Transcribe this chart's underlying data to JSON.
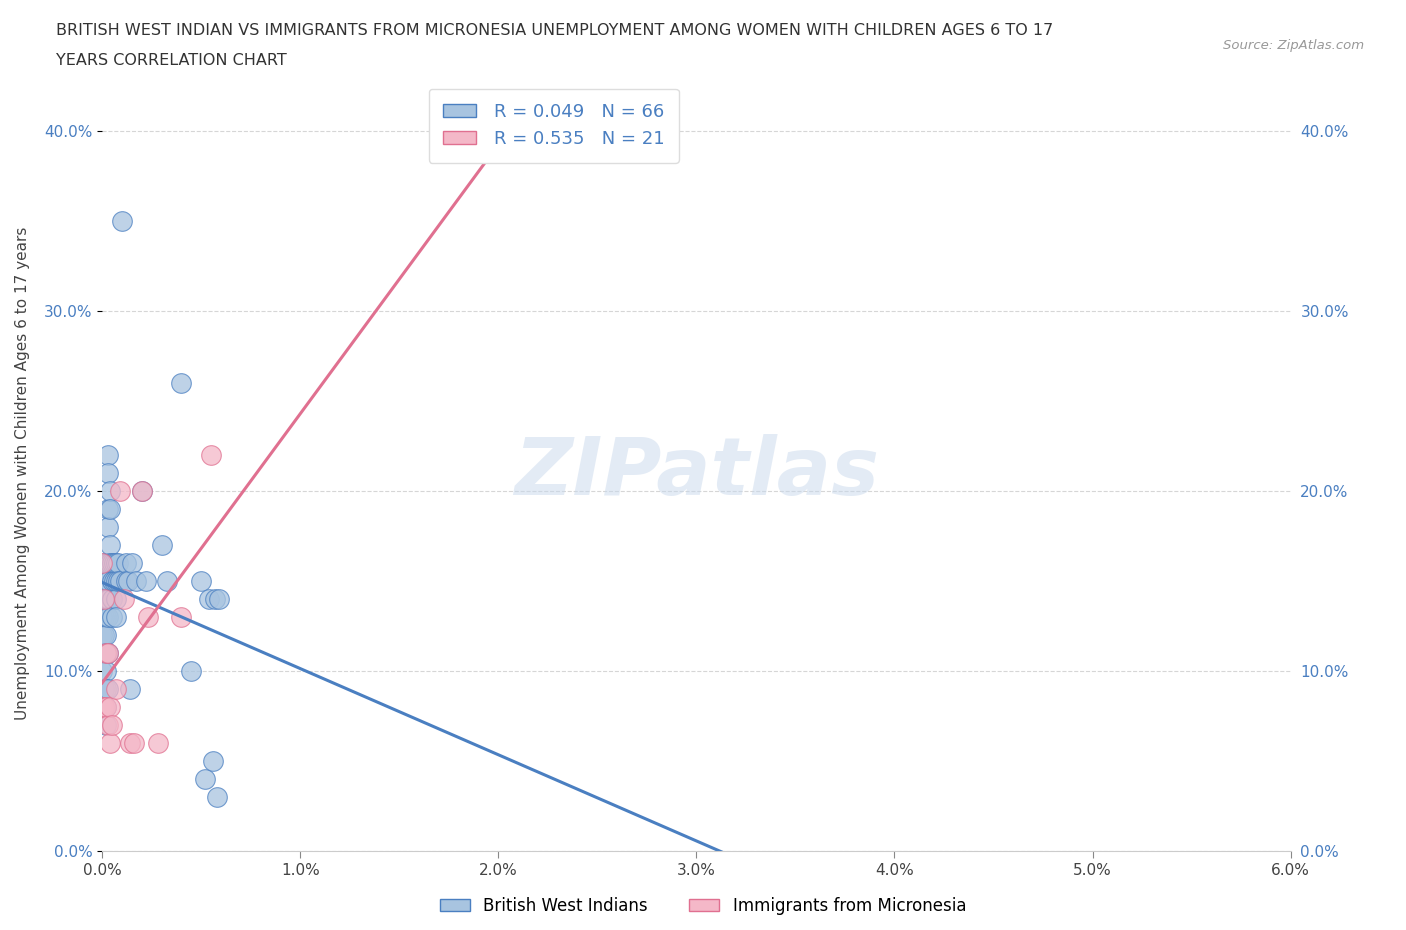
{
  "title_line1": "BRITISH WEST INDIAN VS IMMIGRANTS FROM MICRONESIA UNEMPLOYMENT AMONG WOMEN WITH CHILDREN AGES 6 TO 17",
  "title_line2": "YEARS CORRELATION CHART",
  "source_text": "Source: ZipAtlas.com",
  "ylabel": "Unemployment Among Women with Children Ages 6 to 17 years",
  "watermark": "ZIPatlas",
  "legend_label1": "British West Indians",
  "legend_label2": "Immigrants from Micronesia",
  "R1": 0.049,
  "N1": 66,
  "R2": 0.535,
  "N2": 21,
  "xlim": [
    0.0,
    0.06
  ],
  "ylim": [
    0.0,
    0.42
  ],
  "xticks": [
    0.0,
    0.01,
    0.02,
    0.03,
    0.04,
    0.05,
    0.06
  ],
  "yticks": [
    0.0,
    0.1,
    0.2,
    0.3,
    0.4
  ],
  "color1": "#a8c4e0",
  "color2": "#f4b8c8",
  "trendline1_color": "#4a7fc1",
  "trendline2_color": "#e07090",
  "blue_x": [
    0.0,
    0.0,
    0.0,
    0.0001,
    0.0001,
    0.0001,
    0.0001,
    0.0001,
    0.0001,
    0.0002,
    0.0002,
    0.0002,
    0.0002,
    0.0002,
    0.0002,
    0.0002,
    0.0002,
    0.0002,
    0.0002,
    0.0003,
    0.0003,
    0.0003,
    0.0003,
    0.0003,
    0.0003,
    0.0003,
    0.0003,
    0.0003,
    0.0003,
    0.0004,
    0.0004,
    0.0004,
    0.0004,
    0.0005,
    0.0005,
    0.0005,
    0.0005,
    0.0006,
    0.0006,
    0.0007,
    0.0007,
    0.0007,
    0.0007,
    0.0008,
    0.0008,
    0.0009,
    0.001,
    0.0012,
    0.0012,
    0.0013,
    0.0014,
    0.0015,
    0.0017,
    0.002,
    0.0022,
    0.003,
    0.0033,
    0.004,
    0.0045,
    0.005,
    0.0052,
    0.0054,
    0.0056,
    0.0057,
    0.0058,
    0.0059
  ],
  "blue_y": [
    0.13,
    0.12,
    0.1,
    0.16,
    0.15,
    0.14,
    0.13,
    0.12,
    0.09,
    0.16,
    0.15,
    0.14,
    0.13,
    0.12,
    0.11,
    0.1,
    0.09,
    0.08,
    0.07,
    0.22,
    0.21,
    0.19,
    0.18,
    0.16,
    0.15,
    0.14,
    0.13,
    0.11,
    0.09,
    0.2,
    0.19,
    0.17,
    0.16,
    0.16,
    0.15,
    0.14,
    0.13,
    0.16,
    0.15,
    0.16,
    0.15,
    0.14,
    0.13,
    0.16,
    0.15,
    0.15,
    0.35,
    0.16,
    0.15,
    0.15,
    0.09,
    0.16,
    0.15,
    0.2,
    0.15,
    0.17,
    0.15,
    0.26,
    0.1,
    0.15,
    0.04,
    0.14,
    0.05,
    0.14,
    0.03,
    0.14
  ],
  "pink_x": [
    0.0,
    0.0,
    0.0001,
    0.0001,
    0.0002,
    0.0002,
    0.0003,
    0.0003,
    0.0004,
    0.0004,
    0.0005,
    0.0007,
    0.0009,
    0.0011,
    0.0014,
    0.0016,
    0.002,
    0.0023,
    0.0028,
    0.004,
    0.0055
  ],
  "pink_y": [
    0.08,
    0.16,
    0.14,
    0.08,
    0.11,
    0.08,
    0.11,
    0.07,
    0.08,
    0.06,
    0.07,
    0.09,
    0.2,
    0.14,
    0.06,
    0.06,
    0.2,
    0.13,
    0.06,
    0.13,
    0.22
  ]
}
